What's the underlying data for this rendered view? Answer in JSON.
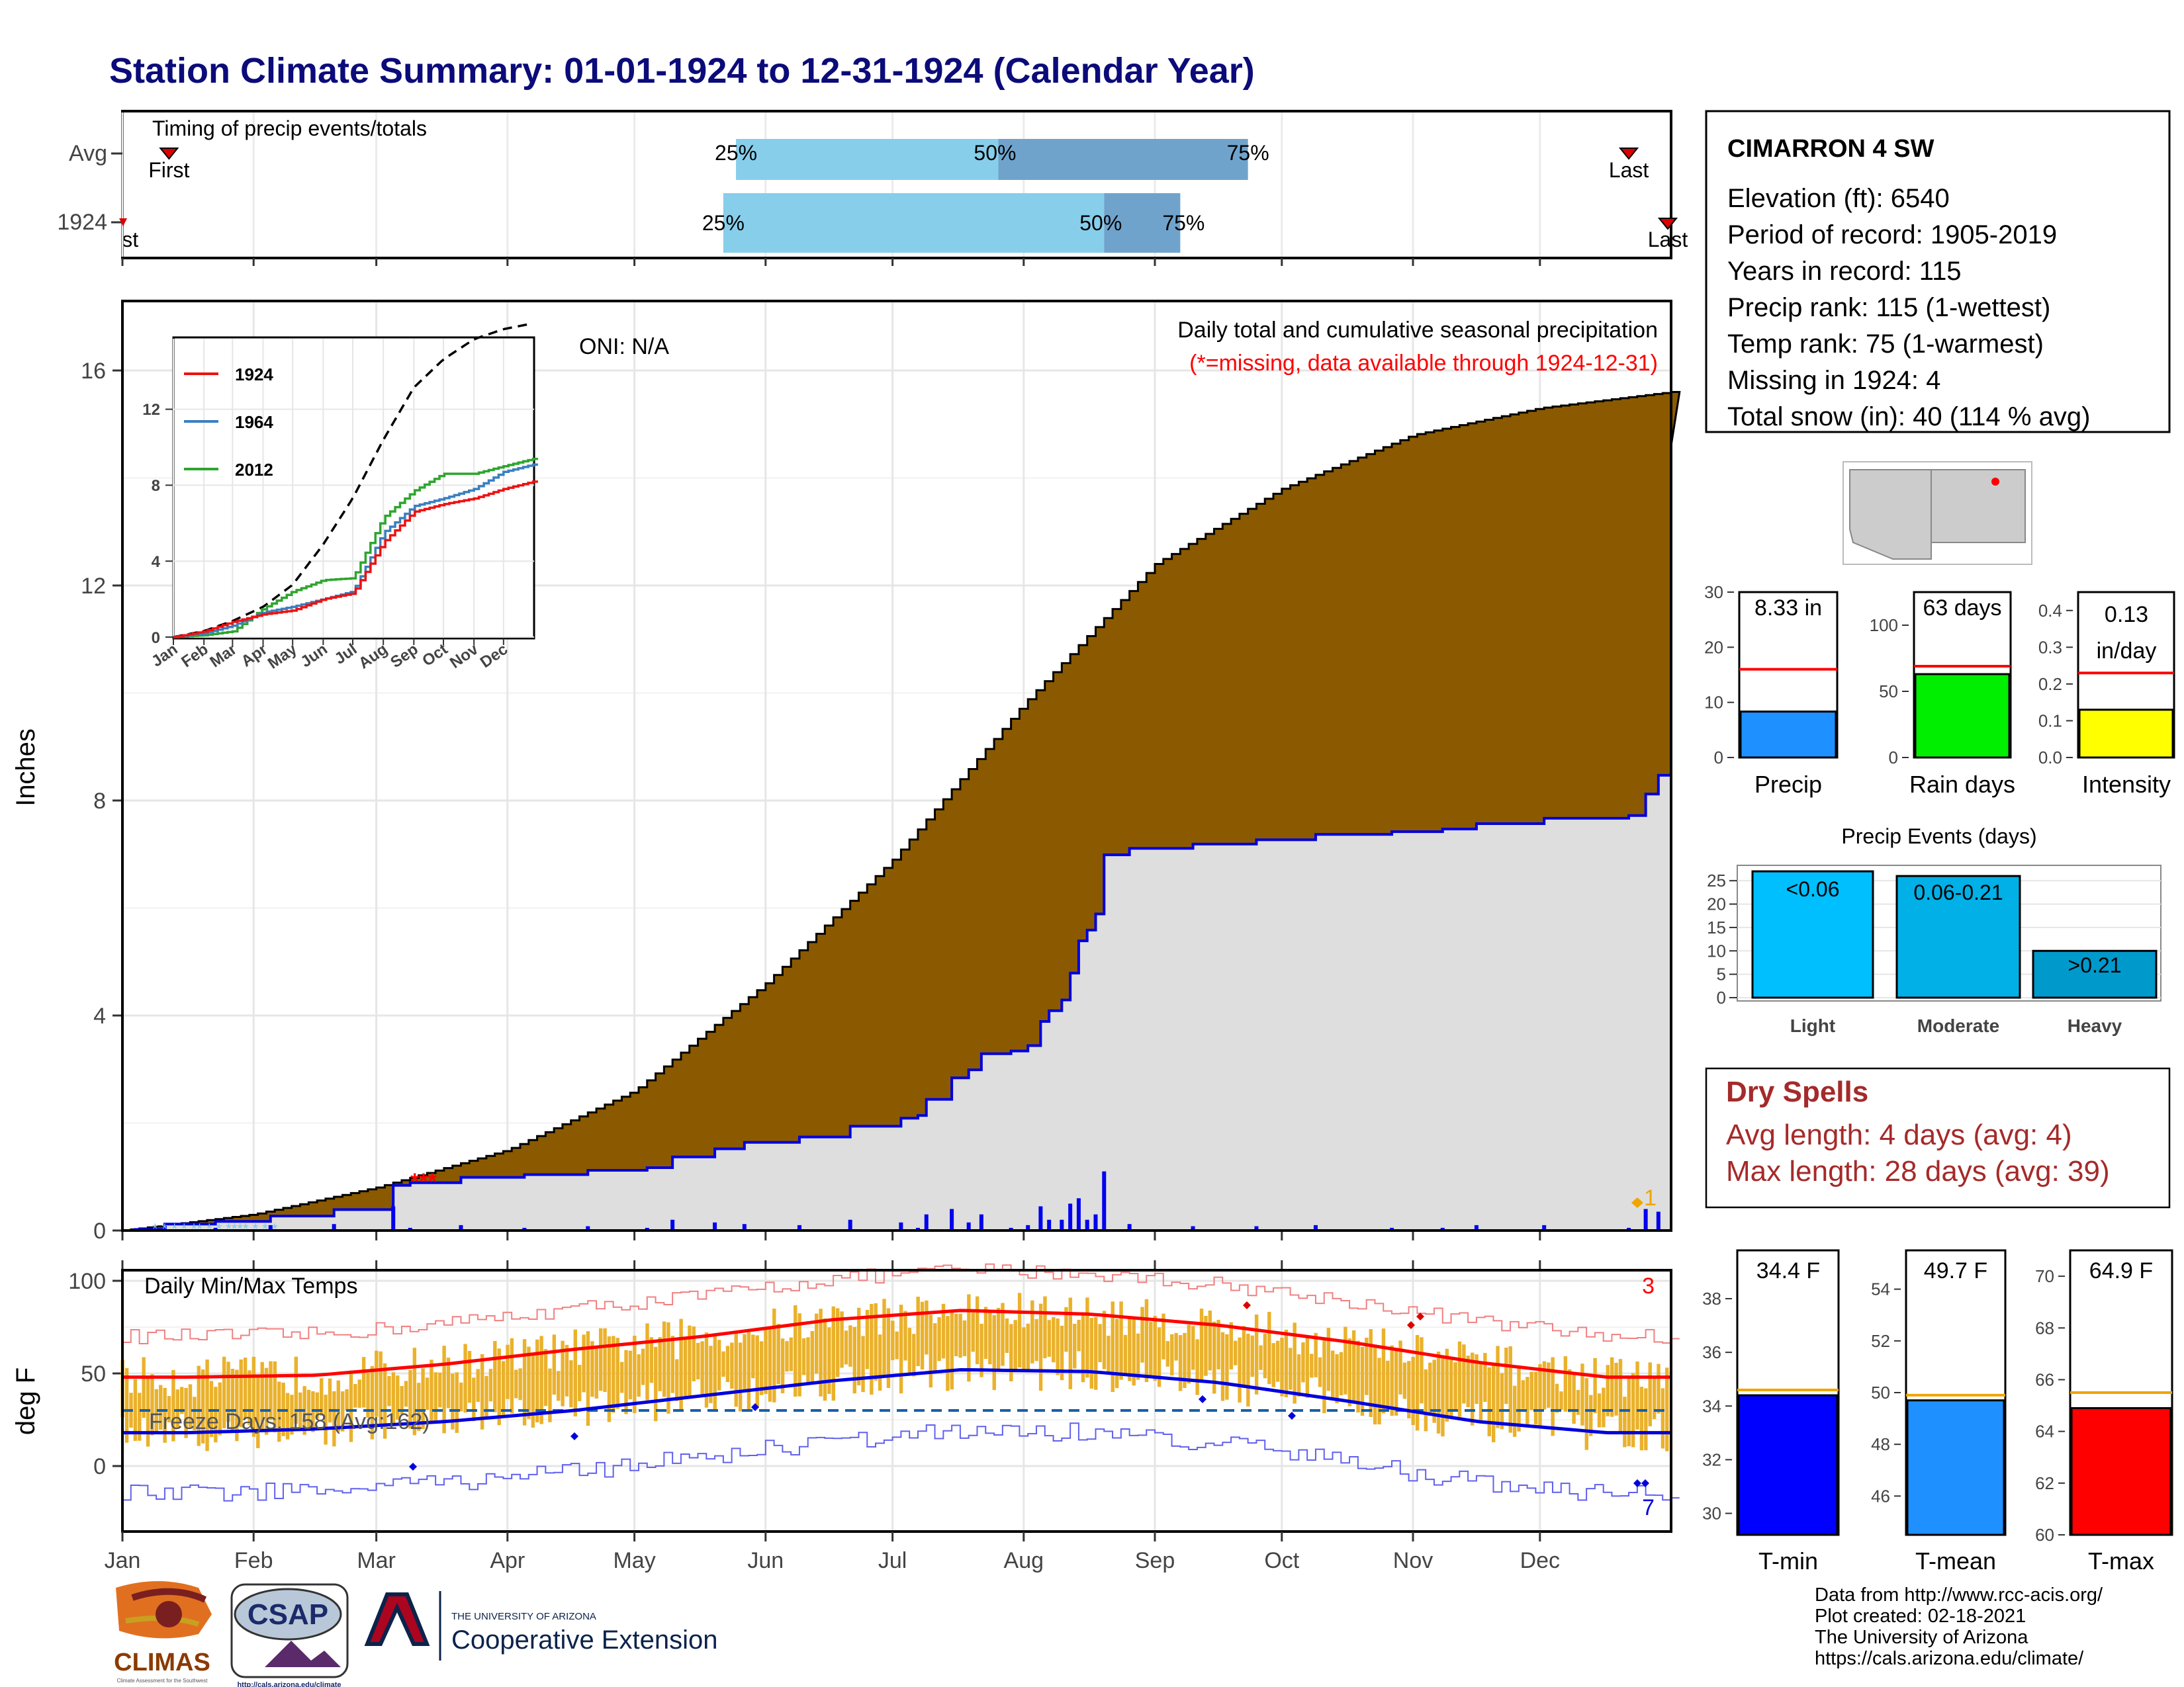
{
  "title": "Station Climate Summary: 01-01-1924 to 12-31-1924 (Calendar Year)",
  "colors": {
    "title": "#0b0b7a",
    "precip_fill": "#8b5a00",
    "avg_fill": "#dedede",
    "avg_line": "#0000dd",
    "red": "#ff0000",
    "light_blue": "#87ceeb",
    "steel_blue": "#6fa3cc",
    "orange": "#f0a500",
    "dry_red": "#a52a2a",
    "green": "#00ee00",
    "yellow": "#ffff00",
    "dodger": "#1e90ff",
    "tmin_blue": "#0000ff"
  },
  "timing": {
    "title": "Timing of precip events/totals",
    "rows": [
      {
        "label": "Avg",
        "first_label": "First",
        "first_doy": 11,
        "last_label": "Last",
        "last_doy": 356,
        "q25": 145,
        "q50": 207,
        "q75": 266,
        "p25": "25%",
        "p50": "50%",
        "p75": "75%"
      },
      {
        "label": "1924",
        "first_label": "First",
        "first_doy": 1,
        "last_label": "Last",
        "last_doy": 366,
        "q25": 142,
        "q50": 232,
        "q75": 250,
        "p25": "25%",
        "p50": "50%",
        "p75": "75%"
      }
    ]
  },
  "precip_panel": {
    "ylabel": "Inches",
    "oni": "ONI: N/A",
    "title": "Daily total and cumulative seasonal precipitation",
    "missing_note": "(*=missing, data available through 1924-12-31)",
    "yticks": [
      "0",
      "4",
      "8",
      "12",
      "16"
    ],
    "orange_label": "1"
  },
  "inset": {
    "yticks": [
      "0",
      "4",
      "8",
      "12"
    ],
    "months": [
      "Jan",
      "Feb",
      "Mar",
      "Apr",
      "May",
      "Jun",
      "Jul",
      "Aug",
      "Sep",
      "Oct",
      "Nov",
      "Dec"
    ],
    "legend": [
      {
        "name": "1924",
        "color": "#ee1111"
      },
      {
        "name": "1964",
        "color": "#3a7fc0"
      },
      {
        "name": "2012",
        "color": "#2ea52e"
      }
    ]
  },
  "temp_panel": {
    "ylabel": "deg F",
    "title": "Daily Min/Max Temps",
    "freeze": "Freeze Days: 158 (Avg:162)",
    "yticks": [
      "0",
      "50",
      "100"
    ],
    "red_count": "3",
    "blue_count": "7"
  },
  "months": [
    "Jan",
    "Feb",
    "Mar",
    "Apr",
    "May",
    "Jun",
    "Jul",
    "Aug",
    "Sep",
    "Oct",
    "Nov",
    "Dec"
  ],
  "station": {
    "name": "CIMARRON 4 SW",
    "lines": [
      "Elevation (ft): 6540",
      "Period of record: 1905-2019",
      "Years in record: 115",
      "Precip rank: 115 (1-wettest)",
      "Temp rank: 75 (1-warmest)",
      "Missing in 1924: 4",
      "Total snow (in): 40 (114 % avg)"
    ]
  },
  "bars_precip": {
    "precip": {
      "label": "Precip",
      "value_text": "8.33 in",
      "value": 8.33,
      "avg": 16.0,
      "ymax": 30,
      "ticks": [
        "0",
        "10",
        "20",
        "30"
      ]
    },
    "rain_days": {
      "label": "Rain days",
      "value_text": "63 days",
      "value": 63,
      "avg": 69,
      "ymax": 125,
      "ticks": [
        "0",
        "50",
        "100"
      ]
    },
    "intensity": {
      "label": "Intensity",
      "value_text": "0.13",
      "value_text2": "in/day",
      "value": 0.13,
      "avg": 0.23,
      "ymax": 0.45,
      "ticks": [
        "0.0",
        "0.1",
        "0.2",
        "0.3",
        "0.4"
      ]
    }
  },
  "precip_events": {
    "title": "Precip Events (days)",
    "ticks": [
      "0",
      "5",
      "10",
      "15",
      "20",
      "25"
    ],
    "ymax": 28,
    "bars": [
      {
        "category": "Light",
        "label": "<0.06",
        "value": 27
      },
      {
        "category": "Moderate",
        "label": "0.06-0.21",
        "value": 26
      },
      {
        "category": "Heavy",
        "label": ">0.21",
        "value": 10
      }
    ]
  },
  "dry_spells": {
    "title": "Dry Spells",
    "avg": "Avg length: 4 days (avg: 4)",
    "max": "Max length: 28 days (avg: 39)"
  },
  "temp_bars": {
    "tmin": {
      "label": "T-min",
      "value_text": "34.4 F",
      "value": 34.4,
      "avg": 34.6,
      "ymin": 29.2,
      "ymax": 39.8,
      "ticks": [
        "30",
        "32",
        "34",
        "36",
        "38"
      ]
    },
    "tmean": {
      "label": "T-mean",
      "value_text": "49.7 F",
      "value": 49.7,
      "avg": 49.9,
      "ymin": 44.5,
      "ymax": 55.5,
      "ticks": [
        "46",
        "48",
        "50",
        "52",
        "54"
      ]
    },
    "tmax": {
      "label": "T-max",
      "value_text": "64.9 F",
      "value": 64.9,
      "avg": 65.5,
      "ymin": 60,
      "ymax": 71,
      "ticks": [
        "60",
        "62",
        "64",
        "66",
        "68",
        "70"
      ]
    }
  },
  "logos": {
    "climas": "CLIMAS",
    "climas_sub": "Climate Assessment for the Southwest",
    "csap": "CSAP",
    "csap_url": "http://cals.arizona.edu/climate",
    "ua_small": "THE UNIVERSITY OF ARIZONA",
    "coop": "Cooperative Extension"
  },
  "footer": [
    "Data from http://www.rcc-acis.org/",
    "Plot created: 02-18-2021",
    "The University of Arizona",
    "https://cals.arizona.edu/climate/"
  ],
  "chart_data": [
    {
      "type": "bar",
      "title": "Timing of precip events/totals",
      "categories": [
        "Avg",
        "1924"
      ],
      "series": [
        {
          "name": "25%",
          "values": [
            145,
            142
          ]
        },
        {
          "name": "50%",
          "values": [
            207,
            232
          ]
        },
        {
          "name": "75%",
          "values": [
            266,
            250
          ]
        }
      ],
      "xlabel": "",
      "ylabel": ""
    },
    {
      "type": "area",
      "title": "Daily total and cumulative seasonal precipitation",
      "x": [
        "Jan",
        "Feb",
        "Mar",
        "Apr",
        "May",
        "Jun",
        "Jul",
        "Aug",
        "Sep",
        "Oct",
        "Nov",
        "Dec",
        "Dec 31"
      ],
      "series": [
        {
          "name": "",
          "values": [
            0.0,
            0.3,
            0.8,
            1.5,
            2.6,
            4.6,
            6.9,
            9.8,
            12.4,
            13.8,
            14.8,
            15.3,
            15.6
          ]
        },
        {
          "name": "1924",
          "values": [
            0.0,
            0.3,
            0.9,
            1.3,
            1.6,
            2.4,
            2.4,
            6.6,
            6.8,
            7.0,
            7.1,
            7.4,
            8.33
          ]
        }
      ],
      "xlabel": "",
      "ylabel": "Inches",
      "ylim": [
        0,
        17
      ]
    },
    {
      "type": "line",
      "title": "",
      "x": [
        "Jan",
        "Feb",
        "Mar",
        "Apr",
        "May",
        "Jun",
        "Jul",
        "Aug",
        "Sep",
        "Oct",
        "Nov",
        "Dec"
      ],
      "series": [
        {
          "name": "1924",
          "values": [
            0.0,
            0.3,
            0.8,
            1.2,
            1.4,
            2.0,
            2.3,
            5.0,
            6.6,
            7.0,
            7.3,
            7.8
          ]
        },
        {
          "name": "1964",
          "values": [
            0.0,
            0.2,
            0.6,
            1.3,
            1.6,
            2.0,
            2.4,
            5.5,
            6.9,
            7.3,
            7.8,
            8.7
          ]
        },
        {
          "name": "2012",
          "values": [
            0.0,
            0.1,
            0.3,
            1.5,
            2.4,
            3.0,
            3.1,
            6.3,
            7.7,
            8.6,
            8.6,
            9.0
          ]
        }
      ],
      "ylim": [
        0,
        16.5
      ]
    },
    {
      "type": "line",
      "title": "Daily Min/Max Temps",
      "x": [
        "Jan",
        "Feb",
        "Mar",
        "Apr",
        "May",
        "Jun",
        "Jul",
        "Aug",
        "Sep",
        "Oct",
        "Nov",
        "Dec"
      ],
      "series": [
        {
          "name": "",
          "values": [
            48,
            49,
            55,
            63,
            70,
            79,
            84,
            82,
            76,
            67,
            56,
            48
          ]
        },
        {
          "name": "",
          "values": [
            18,
            20,
            24,
            30,
            38,
            46,
            52,
            51,
            45,
            35,
            24,
            18
          ]
        }
      ],
      "ylabel": "deg F",
      "ylim": [
        -40,
        105
      ]
    },
    {
      "type": "bar",
      "title": "Precip Events (days)",
      "categories": [
        "Light",
        "Moderate",
        "Heavy"
      ],
      "values": [
        27,
        26,
        10
      ],
      "ylim": [
        0,
        28
      ]
    }
  ]
}
